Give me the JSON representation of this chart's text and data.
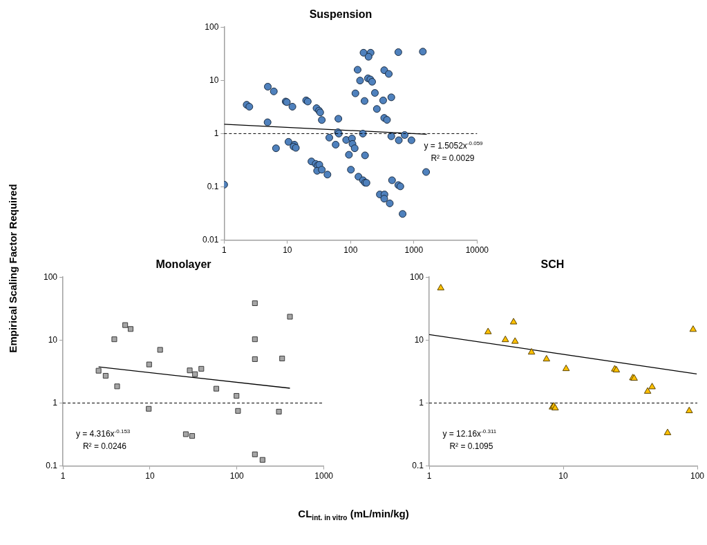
{
  "chart_data": [
    {
      "type": "scatter",
      "title": "Suspension",
      "ylabel": "Empirical Scaling Factor Required",
      "xlabel": "CL$_{int. in vitro}$ (mL/min/kg)",
      "log": "xy",
      "grid": false,
      "legend": false,
      "marker": "circle",
      "xlim": [
        1,
        10000
      ],
      "xticks": [
        1,
        10,
        100,
        1000,
        10000
      ],
      "ylim": [
        0.01,
        100
      ],
      "yticks": [
        0.01,
        0.1,
        1,
        10,
        100
      ],
      "ref_lines": [
        {
          "axis": "y",
          "value": 1,
          "line_style": "dashed",
          "color": "#000000"
        }
      ],
      "annotations": [
        "y = 1.5052x$^{-0.059}$",
        "R² = 0.0029"
      ],
      "series": [
        {
          "color": "#4f81bd",
          "x": [
            1.0,
            2.27,
            2.5,
            4.9,
            6.1,
            4.86,
            6.6,
            9.4,
            9.8,
            12,
            10.4,
            12.9,
            12.5,
            13.6,
            19.8,
            21,
            28.9,
            31.6,
            33,
            35,
            24,
            28,
            30,
            32,
            29.5,
            35,
            43,
            46,
            58,
            63,
            65,
            64,
            85,
            105,
            107,
            116,
            94,
            101,
            133,
            157,
            169,
            178,
            160,
            207,
            192,
            129,
            141,
            188,
            205,
            219,
            119,
            166,
            242,
            260,
            156,
            169,
            340,
            401,
            568,
            1387,
            327,
            440,
            340,
            376,
            440,
            578,
            715,
            916,
            1563,
            452,
            568,
            611,
            290,
            343,
            340,
            416,
            664
          ],
          "values": [
            0.11,
            3.48,
            3.2,
            7.6,
            6.2,
            1.63,
            0.53,
            4.0,
            3.9,
            3.2,
            0.7,
            0.62,
            0.57,
            0.54,
            4.2,
            4.0,
            3.0,
            2.7,
            2.5,
            1.8,
            0.3,
            0.27,
            0.25,
            0.26,
            0.2,
            0.21,
            0.17,
            0.84,
            0.62,
            1.06,
            1.0,
            1.9,
            0.76,
            0.81,
            0.64,
            0.53,
            0.4,
            0.21,
            0.155,
            0.133,
            0.12,
            0.119,
            33,
            33,
            27.7,
            15.8,
            9.9,
            10.9,
            10.4,
            9.4,
            5.7,
            4.1,
            5.8,
            2.9,
            1.0,
            0.39,
            15.5,
            13.2,
            33.8,
            34.6,
            4.2,
            4.8,
            1.97,
            1.81,
            0.89,
            0.75,
            0.94,
            0.75,
            0.19,
            0.133,
            0.108,
            0.102,
            0.072,
            0.072,
            0.06,
            0.049,
            0.031
          ]
        },
        {
          "type": "line",
          "color": "#000000",
          "marker": "none",
          "x": [
            1,
            1600
          ],
          "values": [
            1.5,
            0.97
          ]
        }
      ]
    },
    {
      "type": "scatter",
      "title": "Monolayer",
      "log": "xy",
      "grid": false,
      "legend": false,
      "marker": "square",
      "xlim": [
        1,
        1000
      ],
      "xticks": [
        1,
        10,
        100,
        1000
      ],
      "ylim": [
        0.1,
        100
      ],
      "yticks": [
        0.1,
        1,
        10,
        100
      ],
      "ref_lines": [
        {
          "axis": "y",
          "value": 1,
          "line_style": "dashed",
          "color": "#000000"
        }
      ],
      "annotations": [
        "y = 4.316x$^{-0.153}$",
        "R² = 0.0246"
      ],
      "series": [
        {
          "color": "#a6a6a6",
          "x": [
            2.57,
            3.1,
            3.9,
            4.2,
            5.2,
            6.0,
            9.8,
            9.7,
            13.1,
            28.7,
            33,
            39,
            25.9,
            30.6,
            58,
            99,
            103,
            161,
            161,
            161,
            161,
            197,
            331,
            407,
            304
          ],
          "values": [
            3.26,
            2.71,
            10.3,
            1.84,
            17.3,
            15,
            4.1,
            0.81,
            7.0,
            3.3,
            2.87,
            3.5,
            0.32,
            0.3,
            1.69,
            1.3,
            0.75,
            38.5,
            10.3,
            4.98,
            0.153,
            0.125,
            5.1,
            23.5,
            0.73
          ]
        },
        {
          "type": "line",
          "color": "#000000",
          "marker": "none",
          "x": [
            2.57,
            407
          ],
          "values": [
            3.75,
            1.72
          ]
        }
      ]
    },
    {
      "type": "scatter",
      "title": "SCH",
      "log": "xy",
      "grid": false,
      "legend": false,
      "marker": "triangle",
      "xlim": [
        1,
        100
      ],
      "xticks": [
        1,
        10,
        100
      ],
      "ylim": [
        0.1,
        100
      ],
      "yticks": [
        0.1,
        1,
        10,
        100
      ],
      "ref_lines": [
        {
          "axis": "y",
          "value": 1,
          "line_style": "dashed",
          "color": "#000000"
        }
      ],
      "annotations": [
        "y = 12.16x$^{-0.311}$",
        "R² = 0.1095"
      ],
      "series": [
        {
          "color": "#ffc000",
          "x": [
            1.22,
            2.75,
            3.7,
            4.26,
            4.37,
            5.8,
            7.5,
            8.3,
            8.5,
            8.7,
            10.5,
            24.2,
            24.9,
            33,
            33.8,
            42.6,
            46,
            60,
            87,
            93
          ],
          "values": [
            67,
            13.5,
            10.1,
            19.3,
            9.5,
            6.4,
            4.98,
            0.86,
            0.89,
            0.83,
            3.5,
            3.45,
            3.33,
            2.5,
            2.46,
            1.53,
            1.8,
            0.336,
            0.75,
            14.7
          ]
        },
        {
          "type": "line",
          "color": "#000000",
          "marker": "none",
          "x": [
            1,
            99
          ],
          "values": [
            12.2,
            2.9
          ]
        }
      ]
    }
  ]
}
